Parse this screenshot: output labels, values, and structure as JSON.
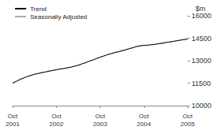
{
  "chart_data": {
    "type": "line",
    "y_label": "$m",
    "categories": [
      "Oct\n2001",
      null,
      null,
      null,
      null,
      null,
      null,
      null,
      null,
      null,
      null,
      null,
      "Oct\n2002",
      null,
      null,
      null,
      null,
      null,
      null,
      null,
      null,
      null,
      null,
      null,
      "Oct\n2003",
      null,
      null,
      null,
      null,
      null,
      null,
      null,
      null,
      null,
      null,
      null,
      "Oct\n2004",
      null,
      null,
      null,
      null,
      null,
      null,
      null,
      null,
      null,
      null,
      null,
      "Oct\n2005"
    ],
    "series": [
      {
        "name": "Trend",
        "color": "#000000",
        "values": [
          11500,
          11620,
          11740,
          11850,
          11940,
          12020,
          12090,
          12150,
          12200,
          12250,
          12300,
          12350,
          12400,
          12440,
          12480,
          12520,
          12570,
          12630,
          12700,
          12780,
          12870,
          12960,
          13050,
          13140,
          13230,
          13320,
          13400,
          13470,
          13540,
          13600,
          13660,
          13730,
          13800,
          13870,
          13940,
          13990,
          14020,
          14040,
          14060,
          14090,
          14130,
          14170,
          14210,
          14250,
          14290,
          14330,
          14370,
          14410,
          14440
        ]
      },
      {
        "name": "Seasonally Adjusted",
        "color": "#aaaaaa",
        "values": [
          11550,
          11600,
          11780,
          11820,
          11960,
          12000,
          12120,
          12130,
          12220,
          12230,
          12320,
          12360,
          12380,
          12470,
          12450,
          12540,
          12550,
          12650,
          12680,
          12800,
          12850,
          12980,
          13030,
          13160,
          13250,
          13290,
          13420,
          13450,
          13570,
          13580,
          13680,
          13700,
          13830,
          13850,
          13960,
          14010,
          14050,
          14000,
          14090,
          14060,
          14160,
          14120,
          14240,
          14220,
          14280,
          14320,
          14380,
          14400,
          14460
        ]
      }
    ],
    "ylim": [
      10000,
      16000
    ],
    "yticks": [
      10000,
      11500,
      13000,
      14500,
      16000
    ],
    "grid": false,
    "legend": "top-left"
  }
}
